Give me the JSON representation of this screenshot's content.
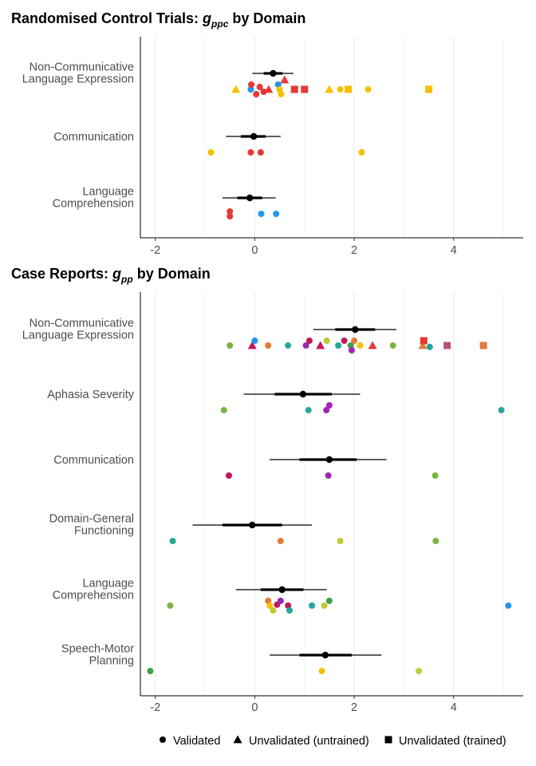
{
  "chart_data": [
    {
      "type": "forest-scatter",
      "title": "Randomised Control Trials: ",
      "title_symbol": "g",
      "title_sub": "ppc",
      "title_suffix": " by Domain",
      "xlim": [
        -2.3,
        5.4
      ],
      "xticks": [
        -2,
        0,
        2,
        4
      ],
      "grid": true,
      "categories": [
        {
          "label": [
            "Non-Communicative",
            "Language Expression"
          ],
          "summary": {
            "estimate": 0.37,
            "ci80": [
              0.18,
              0.56
            ],
            "ci95": [
              -0.05,
              0.78
            ]
          },
          "points": [
            {
              "x": -0.38,
              "shape": "triangle",
              "color": "#f5c000",
              "row": 0
            },
            {
              "x": -0.08,
              "shape": "circle",
              "color": "#2196f3",
              "row": 0
            },
            {
              "x": -0.07,
              "shape": "circle",
              "color": "#e53935",
              "row": -1
            },
            {
              "x": 0.03,
              "shape": "circle",
              "color": "#e53935",
              "row": 1
            },
            {
              "x": 0.1,
              "shape": "circle",
              "color": "#e53935",
              "row": -0.5
            },
            {
              "x": 0.18,
              "shape": "circle",
              "color": "#e53935",
              "row": 0.5
            },
            {
              "x": 0.28,
              "shape": "triangle",
              "color": "#e53935",
              "row": 0
            },
            {
              "x": 0.47,
              "shape": "circle",
              "color": "#2196f3",
              "row": -1
            },
            {
              "x": 0.5,
              "shape": "circle",
              "color": "#f5c000",
              "row": 0
            },
            {
              "x": 0.53,
              "shape": "circle",
              "color": "#f5c000",
              "row": 1
            },
            {
              "x": 0.6,
              "shape": "triangle",
              "color": "#e53935",
              "row": -2
            },
            {
              "x": 0.8,
              "shape": "square",
              "color": "#e53935",
              "row": 0
            },
            {
              "x": 1.0,
              "shape": "square",
              "color": "#e53935",
              "row": 0
            },
            {
              "x": 1.5,
              "shape": "triangle",
              "color": "#f5c000",
              "row": 0
            },
            {
              "x": 1.72,
              "shape": "circle",
              "color": "#f5c000",
              "row": 0
            },
            {
              "x": 1.88,
              "shape": "square",
              "color": "#f5c000",
              "row": 0
            },
            {
              "x": 2.28,
              "shape": "circle",
              "color": "#f5c000",
              "row": 0
            },
            {
              "x": 3.5,
              "shape": "square",
              "color": "#f5c000",
              "row": 0
            }
          ]
        },
        {
          "label": [
            "Communication"
          ],
          "summary": {
            "estimate": -0.02,
            "ci80": [
              -0.28,
              0.22
            ],
            "ci95": [
              -0.58,
              0.52
            ]
          },
          "points": [
            {
              "x": -0.88,
              "shape": "circle",
              "color": "#f5c000",
              "row": 0
            },
            {
              "x": -0.08,
              "shape": "circle",
              "color": "#e53935",
              "row": 0
            },
            {
              "x": 0.12,
              "shape": "circle",
              "color": "#e53935",
              "row": 0
            },
            {
              "x": 2.15,
              "shape": "circle",
              "color": "#f5c000",
              "row": 0
            }
          ]
        },
        {
          "label": [
            "Language",
            "Comprehension"
          ],
          "summary": {
            "estimate": -0.1,
            "ci80": [
              -0.35,
              0.15
            ],
            "ci95": [
              -0.65,
              0.42
            ]
          },
          "points": [
            {
              "x": -0.5,
              "shape": "circle",
              "color": "#e53935",
              "row": -0.5
            },
            {
              "x": -0.5,
              "shape": "circle",
              "color": "#e53935",
              "row": 0.5
            },
            {
              "x": 0.13,
              "shape": "circle",
              "color": "#2196f3",
              "row": 0
            },
            {
              "x": 0.43,
              "shape": "circle",
              "color": "#2196f3",
              "row": 0
            }
          ]
        }
      ]
    },
    {
      "type": "forest-scatter",
      "title": "Case Reports: ",
      "title_symbol": "g",
      "title_sub": "pp",
      "title_suffix": " by Domain",
      "xlim": [
        -2.3,
        5.4
      ],
      "xticks": [
        -2,
        0,
        2,
        4
      ],
      "grid": true,
      "categories": [
        {
          "label": [
            "Non-Communicative",
            "Language Expression"
          ],
          "summary": {
            "estimate": 2.02,
            "ci80": [
              1.62,
              2.42
            ],
            "ci95": [
              1.18,
              2.85
            ]
          },
          "points": [
            {
              "x": -0.5,
              "shape": "circle",
              "color": "#7cb342",
              "row": 0
            },
            {
              "x": -0.05,
              "shape": "triangle",
              "color": "#c2185b",
              "row": 0
            },
            {
              "x": 0.0,
              "shape": "circle",
              "color": "#2196f3",
              "row": -1
            },
            {
              "x": 0.27,
              "shape": "circle",
              "color": "#e07b39",
              "row": 0
            },
            {
              "x": 0.67,
              "shape": "circle",
              "color": "#26a69a",
              "row": 0
            },
            {
              "x": 1.03,
              "shape": "circle",
              "color": "#9c27b0",
              "row": 0
            },
            {
              "x": 1.1,
              "shape": "circle",
              "color": "#c2185b",
              "row": -1
            },
            {
              "x": 1.32,
              "shape": "triangle",
              "color": "#c2185b",
              "row": 0
            },
            {
              "x": 1.45,
              "shape": "circle",
              "color": "#c0ca33",
              "row": -1
            },
            {
              "x": 1.68,
              "shape": "circle",
              "color": "#26a69a",
              "row": 0
            },
            {
              "x": 1.8,
              "shape": "circle",
              "color": "#c2185b",
              "row": -1
            },
            {
              "x": 1.93,
              "shape": "circle",
              "color": "#43a047",
              "row": 0
            },
            {
              "x": 1.95,
              "shape": "circle",
              "color": "#9c27b0",
              "row": 1
            },
            {
              "x": 2.0,
              "shape": "circle",
              "color": "#e07b39",
              "row": -1
            },
            {
              "x": 2.12,
              "shape": "circle",
              "color": "#f5c000",
              "row": 0
            },
            {
              "x": 2.37,
              "shape": "triangle",
              "color": "#e53935",
              "row": 0
            },
            {
              "x": 2.78,
              "shape": "circle",
              "color": "#7cb342",
              "row": 0
            },
            {
              "x": 3.38,
              "shape": "triangle",
              "color": "#e07b39",
              "row": 0
            },
            {
              "x": 3.4,
              "shape": "square",
              "color": "#e53935",
              "row": -1
            },
            {
              "x": 3.52,
              "shape": "circle",
              "color": "#26a69a",
              "row": 0.3
            },
            {
              "x": 3.87,
              "shape": "square",
              "color": "#b5527a",
              "row": 0
            },
            {
              "x": 4.6,
              "shape": "square",
              "color": "#e07b39",
              "row": 0
            }
          ]
        },
        {
          "label": [
            "Aphasia Severity"
          ],
          "summary": {
            "estimate": 0.97,
            "ci80": [
              0.4,
              1.55
            ],
            "ci95": [
              -0.22,
              2.12
            ]
          },
          "points": [
            {
              "x": -0.62,
              "shape": "circle",
              "color": "#7cb342",
              "row": 0
            },
            {
              "x": 1.08,
              "shape": "circle",
              "color": "#26a69a",
              "row": 0
            },
            {
              "x": 1.44,
              "shape": "circle",
              "color": "#9c27b0",
              "row": 0
            },
            {
              "x": 1.5,
              "shape": "circle",
              "color": "#9c27b0",
              "row": -1
            },
            {
              "x": 4.96,
              "shape": "circle",
              "color": "#26a69a",
              "row": 0
            }
          ]
        },
        {
          "label": [
            "Communication"
          ],
          "summary": {
            "estimate": 1.5,
            "ci80": [
              0.9,
              2.05
            ],
            "ci95": [
              0.3,
              2.65
            ]
          },
          "points": [
            {
              "x": -0.52,
              "shape": "circle",
              "color": "#c2185b",
              "row": 0
            },
            {
              "x": 1.48,
              "shape": "circle",
              "color": "#9c27b0",
              "row": 0
            },
            {
              "x": 3.63,
              "shape": "circle",
              "color": "#7cb342",
              "row": 0
            }
          ]
        },
        {
          "label": [
            "Domain-General",
            "Functioning"
          ],
          "summary": {
            "estimate": -0.05,
            "ci80": [
              -0.65,
              0.55
            ],
            "ci95": [
              -1.25,
              1.15
            ]
          },
          "points": [
            {
              "x": -1.65,
              "shape": "circle",
              "color": "#26a69a",
              "row": 0
            },
            {
              "x": 0.52,
              "shape": "circle",
              "color": "#e07b39",
              "row": 0
            },
            {
              "x": 1.72,
              "shape": "circle",
              "color": "#c0ca33",
              "row": 0
            },
            {
              "x": 3.64,
              "shape": "circle",
              "color": "#7cb342",
              "row": 0
            }
          ]
        },
        {
          "label": [
            "Language",
            "Comprehension"
          ],
          "summary": {
            "estimate": 0.55,
            "ci80": [
              0.12,
              0.98
            ],
            "ci95": [
              -0.38,
              1.45
            ]
          },
          "points": [
            {
              "x": -1.7,
              "shape": "circle",
              "color": "#7cb342",
              "row": 0
            },
            {
              "x": 0.27,
              "shape": "circle",
              "color": "#e07b39",
              "row": -1
            },
            {
              "x": 0.3,
              "shape": "circle",
              "color": "#f5c000",
              "row": 0
            },
            {
              "x": 0.37,
              "shape": "circle",
              "color": "#c0ca33",
              "row": 1
            },
            {
              "x": 0.45,
              "shape": "circle",
              "color": "#c2185b",
              "row": -0.2
            },
            {
              "x": 0.52,
              "shape": "circle",
              "color": "#9c27b0",
              "row": -1
            },
            {
              "x": 0.67,
              "shape": "circle",
              "color": "#c2185b",
              "row": 0
            },
            {
              "x": 0.7,
              "shape": "circle",
              "color": "#26a69a",
              "row": 1
            },
            {
              "x": 1.15,
              "shape": "circle",
              "color": "#26a69a",
              "row": 0
            },
            {
              "x": 1.4,
              "shape": "circle",
              "color": "#c0ca33",
              "row": 0
            },
            {
              "x": 1.5,
              "shape": "circle",
              "color": "#43a047",
              "row": -1
            },
            {
              "x": 5.1,
              "shape": "circle",
              "color": "#2196f3",
              "row": 0
            }
          ]
        },
        {
          "label": [
            "Speech-Motor",
            "Planning"
          ],
          "summary": {
            "estimate": 1.42,
            "ci80": [
              0.9,
              1.95
            ],
            "ci95": [
              0.3,
              2.55
            ]
          },
          "points": [
            {
              "x": -2.1,
              "shape": "circle",
              "color": "#43a047",
              "row": 0
            },
            {
              "x": 1.35,
              "shape": "circle",
              "color": "#f5c000",
              "row": 0
            },
            {
              "x": 3.3,
              "shape": "circle",
              "color": "#c0ca33",
              "row": 0
            }
          ]
        }
      ]
    }
  ],
  "legend": {
    "placement": "bottom",
    "items": [
      {
        "label": "Validated",
        "shape": "circle"
      },
      {
        "label": "Unvalidated (untrained)",
        "shape": "triangle"
      },
      {
        "label": "Unvalidated (trained)",
        "shape": "square"
      }
    ]
  }
}
